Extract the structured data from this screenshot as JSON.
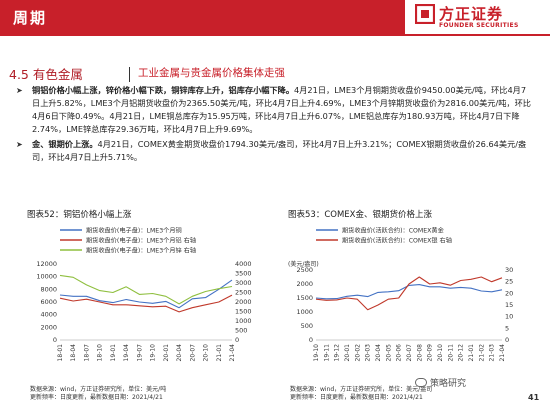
{
  "header": {
    "section": "周期",
    "logo_cn": "方正证券",
    "logo_en": "FOUNDER SECURITIES",
    "brand_color": "#c8202a"
  },
  "title": {
    "number": "4.5 有色金属",
    "subtitle": "工业金属与贵金属价格集体走强"
  },
  "bullets": [
    {
      "lead": "铜铝价格小幅上涨，锌价格小幅下跌，铜锌库存上升，铝库存小幅下降。",
      "body": "4月21日，LME3个月铜期货收盘价9450.00美元/吨，环比4月7日上升5.82%，LME3个月铝期货收盘价为2365.50美元/吨，环比4月7日上升4.69%，LME3个月锌期货收盘价为2816.00美元/吨，环比4月6日下降0.49%。4月21日，LME铜总库存为15.95万吨，环比4月7日上升6.07%，LME铝总库存为180.93万吨，环比4月7日下降2.74%，LME锌总库存29.36万吨，环比4月7日上升9.69%。"
    },
    {
      "lead": "金、银期价上涨。",
      "body": "4月21日，COMEX黄金期货收盘价1794.30美元/盎司，环比4月7日上升3.21%；COMEX银期货收盘价26.64美元/盎司，环比4月7日上升5.71%。"
    }
  ],
  "chart52": {
    "title": "图表52：铜铝价格小幅上涨",
    "note_source": "数据来源：wind，方正证券研究所，单位：美元/吨",
    "note_update": "更新频率：日度更新，最新数据日期：2021/4/21"
  },
  "chart53": {
    "title": "图表53：COMEX金、银期货价格上涨",
    "note_source": "数据来源：wind，方正证券研究所，单位：美元/盎司",
    "note_update": "更新频率：日度更新，最新数据日期：2021/4/21"
  },
  "watermark": "策略研究",
  "page_number": "41",
  "chart_data": [
    {
      "type": "line",
      "legend": [
        "期货收盘价(电子盘)：LME3个月铜",
        "期货收盘价(电子盘)：LME3个月铝 右轴",
        "期货收盘价(电子盘)：LME3个月锌 右轴"
      ],
      "x_ticks": [
        "18-01",
        "18-04",
        "18-07",
        "18-10",
        "19-01",
        "19-04",
        "19-07",
        "19-10",
        "20-01",
        "20-04",
        "20-07",
        "20-10",
        "21-01",
        "21-04"
      ],
      "y_left": {
        "ticks": [
          "0",
          "2000",
          "4000",
          "6000",
          "8000",
          "10000",
          "12000"
        ],
        "range": [
          0,
          12000
        ]
      },
      "y_right": {
        "ticks": [
          "0",
          "500",
          "1000",
          "1500",
          "2000",
          "2500",
          "3000",
          "3500",
          "4000"
        ],
        "range": [
          0,
          4000
        ]
      },
      "series": [
        {
          "name": "期货收盘价(电子盘)：LME3个月铜",
          "axis": "left",
          "color": "#4472c4",
          "values": [
            7100,
            6900,
            6900,
            6200,
            5900,
            6400,
            6000,
            5800,
            6100,
            5100,
            6500,
            6700,
            8000,
            9450
          ]
        },
        {
          "name": "期货收盘价(电子盘)：LME3个月铝 右轴",
          "axis": "right",
          "color": "#c0392b",
          "values": [
            2200,
            2050,
            2150,
            2000,
            1850,
            1850,
            1800,
            1750,
            1780,
            1480,
            1700,
            1850,
            2000,
            2365
          ]
        },
        {
          "name": "期货收盘价(电子盘)：LME3个月锌 右轴",
          "axis": "right",
          "color": "#8fbf3f",
          "values": [
            3400,
            3300,
            2900,
            2600,
            2500,
            2800,
            2400,
            2450,
            2300,
            1900,
            2300,
            2550,
            2700,
            2816
          ]
        }
      ]
    },
    {
      "type": "line",
      "unit_label": "(美元/盎司)",
      "legend": [
        "期货收盘价(活跃合约)：COMEX黄金",
        "期货收盘价(活跃合约)：COMEX银 右轴"
      ],
      "x_ticks": [
        "19-10",
        "19-11",
        "19-12",
        "20-01",
        "20-02",
        "20-03",
        "20-04",
        "20-05",
        "20-06",
        "20-07",
        "20-08",
        "20-09",
        "20-10",
        "20-11",
        "20-12",
        "21-01",
        "21-02",
        "21-03",
        "21-04"
      ],
      "y_left": {
        "ticks": [
          "0",
          "500",
          "1000",
          "1500",
          "2000",
          "2500"
        ],
        "range": [
          0,
          2500
        ]
      },
      "y_right": {
        "ticks": [
          "0",
          "5",
          "10",
          "15",
          "20",
          "25",
          "30"
        ],
        "range": [
          0,
          30
        ]
      },
      "series": [
        {
          "name": "期货收盘价(活跃合约)：COMEX黄金",
          "axis": "left",
          "color": "#4472c4",
          "values": [
            1500,
            1470,
            1480,
            1560,
            1600,
            1550,
            1700,
            1720,
            1760,
            1950,
            1980,
            1900,
            1900,
            1850,
            1880,
            1850,
            1750,
            1720,
            1794
          ]
        },
        {
          "name": "期货收盘价(活跃合约)：COMEX银 右轴",
          "axis": "right",
          "color": "#c0392b",
          "values": [
            17.5,
            17.0,
            17.2,
            18.0,
            17.5,
            13.0,
            15.0,
            17.5,
            18.0,
            24.0,
            27.0,
            24.0,
            24.5,
            23.5,
            25.5,
            26.0,
            27.0,
            25.0,
            26.64
          ]
        }
      ]
    }
  ]
}
